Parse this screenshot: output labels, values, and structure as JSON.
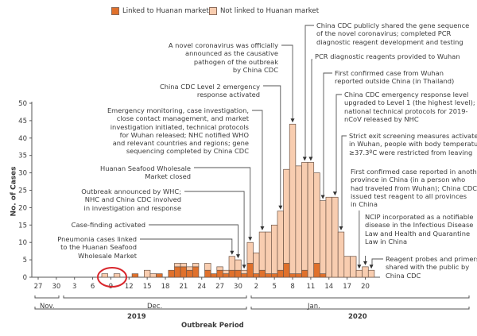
{
  "chart_data": {
    "type": "bar",
    "stacked": true,
    "title": "",
    "xlabel": "Outbreak Period",
    "ylabel": "No. of Cases",
    "ylim": [
      0,
      50
    ],
    "yticks": [
      0,
      5,
      10,
      15,
      20,
      25,
      30,
      35,
      40,
      45,
      50
    ],
    "xticks": [
      "27",
      "30",
      "3",
      "6",
      "9",
      "12",
      "15",
      "18",
      "21",
      "24",
      "27",
      "30",
      "2",
      "5",
      "8",
      "11",
      "14",
      "17",
      "20"
    ],
    "months": [
      "Nov.",
      "Dec.",
      "Jan."
    ],
    "years": [
      "2019",
      "2020"
    ],
    "legend_position": "top",
    "series": [
      {
        "name": "Linked to Huanan market",
        "color": "#e0712c"
      },
      {
        "name": "Not linked to Huanan market",
        "color": "#f8cdb0"
      }
    ],
    "x": [
      "Dec 8",
      "Dec 10",
      "Dec 13",
      "Dec 15",
      "Dec 16",
      "Dec 17",
      "Dec 19",
      "Dec 20",
      "Dec 21",
      "Dec 22",
      "Dec 23",
      "Dec 25",
      "Dec 26",
      "Dec 27",
      "Dec 28",
      "Dec 29",
      "Dec 30",
      "Dec 31",
      "Jan 1",
      "Jan 2",
      "Jan 3",
      "Jan 4",
      "Jan 5",
      "Jan 6",
      "Jan 7",
      "Jan 8",
      "Jan 9",
      "Jan 10",
      "Jan 11",
      "Jan 12",
      "Jan 13",
      "Jan 14",
      "Jan 15",
      "Jan 16",
      "Jan 17",
      "Jan 18",
      "Jan 19",
      "Jan 20",
      "Jan 21"
    ],
    "linked": [
      0,
      0,
      1,
      0,
      0,
      1,
      2,
      3,
      3,
      2,
      3,
      2,
      1,
      2,
      1,
      2,
      2,
      1,
      4,
      1,
      2,
      1,
      1,
      2,
      4,
      1,
      1,
      2,
      0,
      4,
      1,
      0,
      0,
      0,
      0,
      0,
      0,
      0,
      0
    ],
    "not_linked": [
      1,
      1,
      0,
      2,
      1,
      0,
      0,
      1,
      1,
      1,
      1,
      2,
      0,
      1,
      1,
      4,
      3,
      1,
      6,
      6,
      11,
      12,
      14,
      17,
      27,
      43,
      31,
      31,
      33,
      26,
      21,
      23,
      23,
      13,
      6,
      6,
      2,
      3,
      2
    ],
    "highlight": "circled cases Dec 8 and Dec 10",
    "annotations": [
      {
        "target": "Jan 8",
        "text": [
          "A novel coronavirus was officially",
          "announced as the causative",
          "pathogen of the outbreak",
          "by China CDC"
        ]
      },
      {
        "target": "Jan 6",
        "text": [
          "China CDC Level 2 emergency",
          "response activated"
        ]
      },
      {
        "target": "Jan 3",
        "text": [
          "Emergency monitoring, case investigation,",
          "close contact management, and market",
          "investigation initiated, technical protocols",
          "for Wuhan released; NHC notified WHO",
          "and relevant countries and regions; gene",
          "sequencing completed by China CDC"
        ]
      },
      {
        "target": "Jan 1",
        "text": [
          "Huanan Seafood Wholesale",
          "Market closed"
        ]
      },
      {
        "target": "Dec 31",
        "text": [
          "Outbreak announced by WHC;",
          "NHC and China CDC involved",
          "in investigation and response"
        ]
      },
      {
        "target": "Dec 30",
        "text": [
          "Case-finding activated"
        ]
      },
      {
        "target": "Dec 29",
        "text": [
          "Pneumonia cases linked",
          "to the Huanan Seafood",
          "Wholesale Market"
        ]
      },
      {
        "target": "Jan 10",
        "text": [
          "China CDC publicly shared the gene sequence",
          "of the novel coronavirus; completed PCR",
          "diagnostic reagent development and testing"
        ]
      },
      {
        "target": "Jan 11",
        "text": [
          "PCR diagnostic reagents provided to Wuhan"
        ]
      },
      {
        "target": "Jan 13",
        "text": [
          "First confirmed case from Wuhan",
          "reported outside China (in Thailand)"
        ]
      },
      {
        "target": "Jan 15",
        "text": [
          "China CDC emergency response level",
          "upgraded to Level 1 (the highest level);",
          "national technical protocols for 2019-",
          "nCoV released by NHC"
        ]
      },
      {
        "target": "Jan 16",
        "text": [
          "Strict exit screening measures activated",
          "in Wuhan, people with body temperature",
          "≥37.3ºC were restricted from leaving"
        ]
      },
      {
        "target": "Jan 19",
        "text": [
          "First confirmed case reported in another",
          "province in China (in a person who",
          "had traveled from Wuhan); China CDC",
          "issued test reagent to all provinces",
          "in China"
        ]
      },
      {
        "target": "Jan 20",
        "text": [
          "NCIP incorporated as a notifiable",
          "disease in the Infectious Disease",
          "Law and Health and Quarantine",
          "Law in China"
        ]
      },
      {
        "target": "Jan 21",
        "text": [
          "Reagent probes and primers",
          "shared with the public by",
          "China CDC"
        ]
      }
    ]
  }
}
